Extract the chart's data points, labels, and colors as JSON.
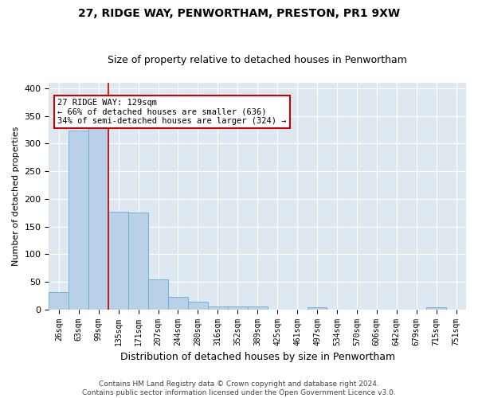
{
  "title_line1": "27, RIDGE WAY, PENWORTHAM, PRESTON, PR1 9XW",
  "title_line2": "Size of property relative to detached houses in Penwortham",
  "xlabel": "Distribution of detached houses by size in Penwortham",
  "ylabel": "Number of detached properties",
  "footer_line1": "Contains HM Land Registry data © Crown copyright and database right 2024.",
  "footer_line2": "Contains public sector information licensed under the Open Government Licence v3.0.",
  "bar_labels": [
    "26sqm",
    "63sqm",
    "99sqm",
    "135sqm",
    "171sqm",
    "207sqm",
    "244sqm",
    "280sqm",
    "316sqm",
    "352sqm",
    "389sqm",
    "425sqm",
    "461sqm",
    "497sqm",
    "534sqm",
    "570sqm",
    "606sqm",
    "642sqm",
    "679sqm",
    "715sqm",
    "751sqm"
  ],
  "bar_values": [
    31,
    323,
    335,
    177,
    175,
    55,
    22,
    14,
    6,
    5,
    5,
    0,
    0,
    4,
    0,
    0,
    0,
    0,
    0,
    4,
    0
  ],
  "bar_color": "#b8d0e8",
  "bar_edge_color": "#6aaad4",
  "vline_color": "#cc0000",
  "annotation_text": "27 RIDGE WAY: 129sqm\n← 66% of detached houses are smaller (636)\n34% of semi-detached houses are larger (324) →",
  "annotation_box_color": "#ffffff",
  "annotation_box_edge": "#cc0000",
  "ylim": [
    0,
    410
  ],
  "plot_bg_color": "#dde8f0",
  "fig_bg_color": "#ffffff",
  "grid_color": "#ffffff",
  "title_fontsize": 10,
  "subtitle_fontsize": 9,
  "ylabel_fontsize": 8,
  "xlabel_fontsize": 9,
  "tick_fontsize": 7,
  "annotation_fontsize": 7.5,
  "footer_fontsize": 6.5,
  "vline_x_index": 2.5
}
